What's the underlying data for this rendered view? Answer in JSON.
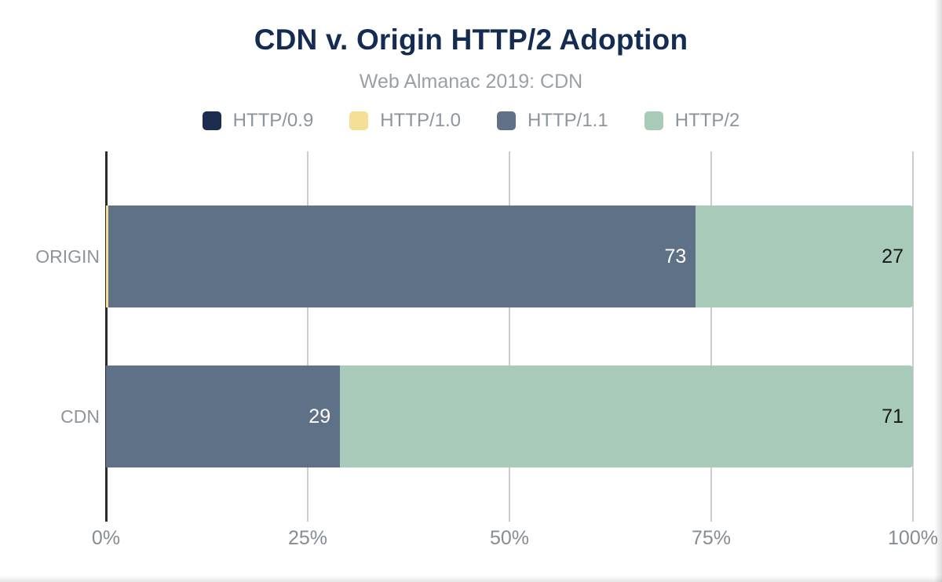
{
  "chart_data": {
    "type": "bar",
    "orientation": "horizontal",
    "stacked": true,
    "title": "CDN v. Origin HTTP/2 Adoption",
    "subtitle": "Web Almanac 2019: CDN",
    "categories": [
      "ORIGIN",
      "CDN"
    ],
    "series": [
      {
        "name": "HTTP/0.9",
        "color": "#1c2d4f",
        "values": [
          0,
          0
        ],
        "labels": [
          "",
          ""
        ],
        "label_color": "#ffffff"
      },
      {
        "name": "HTTP/1.0",
        "color": "#f3e096",
        "values": [
          0.3,
          0
        ],
        "labels": [
          "",
          ""
        ],
        "label_color": "#14181c"
      },
      {
        "name": "HTTP/1.1",
        "color": "#5f7186",
        "values": [
          73,
          29
        ],
        "labels": [
          "73",
          "29"
        ],
        "label_color": "#ffffff"
      },
      {
        "name": "HTTP/2",
        "color": "#a8cab8",
        "values": [
          27,
          71
        ],
        "labels": [
          "27",
          "71"
        ],
        "label_color": "#14181c"
      }
    ],
    "xlabel": "",
    "ylabel": "",
    "xlim": [
      0,
      100
    ],
    "x_ticks": [
      "0%",
      "25%",
      "50%",
      "75%",
      "100%"
    ],
    "x_tick_values": [
      0,
      25,
      50,
      75,
      100
    ],
    "grid": true,
    "legend_position": "top",
    "colors": {
      "title": "#152c52",
      "subtitle": "#9aa0a6",
      "axis_line": "#2b2b2b",
      "gridline": "#cccccc",
      "tick_label": "#858d94",
      "category_label": "#8d959c"
    }
  }
}
